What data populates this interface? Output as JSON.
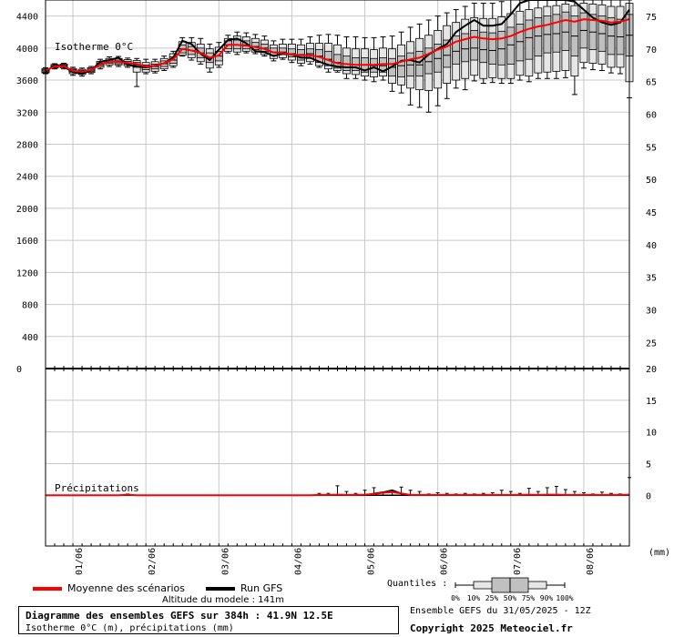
{
  "chart_data": {
    "type": "boxplot",
    "upper_panel": {
      "annotation": "Isotherme 0°C",
      "y_left_ticks": [
        400,
        800,
        1200,
        1600,
        2000,
        2400,
        2800,
        3200,
        3600,
        4000,
        4400
      ],
      "y_left_range": [
        0,
        4600
      ],
      "y_right_ticks": [
        25,
        30,
        35,
        40,
        45,
        50,
        55,
        60,
        65,
        70,
        75
      ],
      "y_right_range": [
        21,
        77.5
      ],
      "x_axis_range_hours": [
        0,
        384
      ],
      "ensemble_boxes": {
        "forecast_hour": [
          0,
          6,
          12,
          18,
          24,
          30,
          36,
          42,
          48,
          54,
          60,
          66,
          72,
          78,
          84,
          90,
          96,
          102,
          108,
          114,
          120,
          126,
          132,
          138,
          144,
          150,
          156,
          162,
          168,
          174,
          180,
          186,
          192,
          198,
          204,
          210,
          216,
          222,
          228,
          234,
          240,
          246,
          252,
          258,
          264,
          270,
          276,
          282,
          288,
          294,
          300,
          306,
          312,
          318,
          324,
          330,
          336,
          342,
          348,
          354,
          360,
          366,
          372,
          378,
          384
        ],
        "p0": [
          3680,
          3740,
          3740,
          3660,
          3650,
          3680,
          3740,
          3770,
          3770,
          3760,
          3520,
          3680,
          3690,
          3720,
          3760,
          3900,
          3850,
          3800,
          3700,
          3760,
          3940,
          3920,
          3940,
          3930,
          3900,
          3840,
          3860,
          3820,
          3780,
          3800,
          3760,
          3700,
          3700,
          3620,
          3620,
          3600,
          3580,
          3600,
          3460,
          3440,
          3290,
          3260,
          3200,
          3280,
          3370,
          3500,
          3480,
          3590,
          3560,
          3570,
          3560,
          3560,
          3600,
          3580,
          3620,
          3620,
          3620,
          3630,
          3420,
          3750,
          3730,
          3720,
          3690,
          3680,
          3380
        ],
        "p10": [
          3690,
          3750,
          3755,
          3680,
          3670,
          3695,
          3760,
          3790,
          3790,
          3780,
          3700,
          3700,
          3710,
          3740,
          3780,
          3910,
          3880,
          3830,
          3750,
          3790,
          3960,
          3950,
          3960,
          3950,
          3920,
          3870,
          3880,
          3850,
          3810,
          3830,
          3780,
          3740,
          3720,
          3680,
          3670,
          3650,
          3640,
          3650,
          3560,
          3540,
          3500,
          3480,
          3470,
          3500,
          3560,
          3600,
          3620,
          3660,
          3620,
          3630,
          3620,
          3620,
          3660,
          3650,
          3690,
          3700,
          3710,
          3720,
          3650,
          3820,
          3810,
          3800,
          3760,
          3760,
          3580
        ],
        "p25": [
          3700,
          3760,
          3765,
          3700,
          3690,
          3710,
          3780,
          3810,
          3805,
          3800,
          3760,
          3730,
          3740,
          3770,
          3810,
          3940,
          3920,
          3880,
          3820,
          3840,
          3990,
          3990,
          3990,
          3980,
          3960,
          3910,
          3920,
          3890,
          3850,
          3870,
          3820,
          3780,
          3750,
          3720,
          3720,
          3700,
          3700,
          3700,
          3650,
          3640,
          3650,
          3650,
          3680,
          3700,
          3760,
          3800,
          3830,
          3850,
          3820,
          3800,
          3790,
          3800,
          3840,
          3860,
          3900,
          3940,
          3950,
          3970,
          3900,
          4000,
          3980,
          3960,
          3920,
          3920,
          3900
        ],
        "p50": [
          3715,
          3770,
          3775,
          3715,
          3705,
          3725,
          3795,
          3830,
          3825,
          3815,
          3790,
          3760,
          3770,
          3805,
          3850,
          3990,
          3970,
          3940,
          3880,
          3900,
          4040,
          4040,
          4040,
          4020,
          4000,
          3950,
          3950,
          3930,
          3920,
          3930,
          3900,
          3860,
          3820,
          3800,
          3790,
          3790,
          3780,
          3780,
          3760,
          3780,
          3790,
          3790,
          3830,
          3870,
          3910,
          3960,
          3990,
          4000,
          3980,
          3970,
          3990,
          4040,
          4080,
          4130,
          4150,
          4170,
          4180,
          4200,
          4150,
          4220,
          4200,
          4180,
          4150,
          4140,
          4160
        ],
        "p75": [
          3730,
          3780,
          3790,
          3730,
          3720,
          3740,
          3815,
          3850,
          3850,
          3835,
          3820,
          3790,
          3800,
          3840,
          3890,
          4040,
          4020,
          4000,
          3940,
          3960,
          4090,
          4100,
          4090,
          4070,
          4050,
          4000,
          4000,
          3990,
          3980,
          3990,
          3980,
          3960,
          3920,
          3900,
          3880,
          3880,
          3870,
          3880,
          3870,
          3900,
          3940,
          3960,
          4000,
          4050,
          4100,
          4150,
          4180,
          4220,
          4200,
          4190,
          4210,
          4260,
          4300,
          4350,
          4380,
          4400,
          4420,
          4450,
          4400,
          4440,
          4420,
          4400,
          4380,
          4360,
          4420
        ],
        "p90": [
          3745,
          3795,
          3800,
          3745,
          3735,
          3755,
          3835,
          3870,
          3870,
          3855,
          3845,
          3820,
          3830,
          3870,
          3930,
          4080,
          4070,
          4050,
          3990,
          4010,
          4120,
          4150,
          4140,
          4120,
          4100,
          4040,
          4050,
          4050,
          4040,
          4060,
          4060,
          4060,
          4040,
          4000,
          3990,
          3990,
          3980,
          4000,
          3990,
          4040,
          4080,
          4120,
          4160,
          4220,
          4280,
          4320,
          4360,
          4380,
          4370,
          4370,
          4390,
          4430,
          4460,
          4480,
          4500,
          4520,
          4530,
          4550,
          4530,
          4560,
          4550,
          4540,
          4520,
          4520,
          4560
        ],
        "p100": [
          3755,
          3805,
          3810,
          3760,
          3750,
          3770,
          3860,
          3890,
          3895,
          3875,
          3870,
          3860,
          3860,
          3900,
          3960,
          4130,
          4130,
          4120,
          4050,
          4070,
          4160,
          4200,
          4190,
          4170,
          4150,
          4090,
          4110,
          4110,
          4110,
          4140,
          4160,
          4170,
          4160,
          4140,
          4140,
          4130,
          4130,
          4140,
          4150,
          4200,
          4260,
          4300,
          4350,
          4400,
          4440,
          4480,
          4520,
          4560,
          4560,
          4560,
          4580,
          4600,
          4600,
          4600,
          4600,
          4600,
          4600,
          4600,
          4600,
          4600,
          4600,
          4600,
          4600,
          4600,
          4600
        ],
        "mean": [
          3720,
          3770,
          3775,
          3715,
          3705,
          3725,
          3795,
          3830,
          3830,
          3815,
          3800,
          3770,
          3780,
          3810,
          3860,
          3990,
          3970,
          3940,
          3880,
          3910,
          4040,
          4040,
          4030,
          4010,
          3990,
          3945,
          3940,
          3920,
          3910,
          3910,
          3890,
          3850,
          3810,
          3800,
          3790,
          3790,
          3790,
          3800,
          3800,
          3830,
          3860,
          3880,
          3930,
          3980,
          4020,
          4080,
          4110,
          4140,
          4120,
          4110,
          4120,
          4150,
          4200,
          4240,
          4270,
          4290,
          4320,
          4350,
          4330,
          4360,
          4350,
          4340,
          4320,
          4330,
          4360
        ]
      },
      "run_gfs": [
        3700,
        3790,
        3770,
        3700,
        3680,
        3720,
        3830,
        3850,
        3880,
        3790,
        3770,
        3760,
        3780,
        3810,
        3880,
        4090,
        4050,
        3930,
        3850,
        3980,
        4100,
        4120,
        4060,
        3960,
        3950,
        3900,
        3930,
        3920,
        3880,
        3880,
        3830,
        3790,
        3770,
        3760,
        3760,
        3720,
        3760,
        3710,
        3770,
        3840,
        3850,
        3820,
        3920,
        3990,
        4050,
        4200,
        4280,
        4350,
        4280,
        4280,
        4300,
        4420,
        4560,
        4600,
        4600,
        4600,
        4600,
        4600,
        4580,
        4480,
        4380,
        4320,
        4290,
        4320,
        4480
      ]
    },
    "lower_panel": {
      "annotation": "Précipitations",
      "y_right_ticks": [
        0,
        5,
        10,
        15,
        20
      ],
      "y_right_range": [
        -8,
        20
      ],
      "unit_label": "(mm)",
      "y_left_label": "0",
      "precip_max": [
        0,
        0,
        0,
        0,
        0,
        0,
        0,
        0,
        0,
        0.2,
        0,
        0,
        0,
        0,
        0,
        0,
        0,
        0,
        0,
        0,
        0,
        0,
        0,
        0,
        0,
        0,
        0,
        0,
        0,
        0,
        0.3,
        0.3,
        1.5,
        0.6,
        0.3,
        0.8,
        1.2,
        0.4,
        0.8,
        1.3,
        0.8,
        0.6,
        0.2,
        0.4,
        0.3,
        0.2,
        0.3,
        0.2,
        0.3,
        0.4,
        0.8,
        0.6,
        0.3,
        1.1,
        0.6,
        1.2,
        1.4,
        0.9,
        0.6,
        0.4,
        0.2,
        0.5,
        0.3,
        0.2,
        2.8
      ],
      "precip_mean": [
        0,
        0,
        0,
        0,
        0,
        0,
        0,
        0,
        0,
        0.1,
        0,
        0,
        0,
        0,
        0,
        0,
        0,
        0,
        0,
        0,
        0,
        0,
        0,
        0,
        0,
        0,
        0,
        0,
        0,
        0,
        0.05,
        0.05,
        0.1,
        0.05,
        0.05,
        0.1,
        0.2,
        0.4,
        0.5,
        0.3,
        0.05,
        0.05,
        0.05,
        0.05,
        0.05,
        0.05,
        0.05,
        0.05,
        0.05,
        0.05,
        0.05,
        0.05,
        0.05,
        0.1,
        0.05,
        0.1,
        0.1,
        0.05,
        0.05,
        0.05,
        0.05,
        0.05,
        0.05,
        0.05,
        0.1
      ],
      "run_gfs": [
        0,
        0,
        0,
        0,
        0,
        0,
        0,
        0,
        0,
        0,
        0,
        0,
        0,
        0,
        0,
        0,
        0,
        0,
        0,
        0,
        0,
        0,
        0,
        0,
        0,
        0,
        0,
        0,
        0,
        0,
        0,
        0,
        0,
        0,
        0,
        0,
        0.3,
        0.5,
        0.8,
        0.3,
        0,
        0,
        0,
        0,
        0,
        0,
        0,
        0,
        0,
        0,
        0,
        0,
        0,
        0,
        0,
        0,
        0,
        0,
        0,
        0,
        0,
        0,
        0,
        0,
        0
      ]
    },
    "x_ticks": [
      {
        "hour": 18,
        "label": "01/06"
      },
      {
        "hour": 66,
        "label": "02/06"
      },
      {
        "hour": 114,
        "label": "03/06"
      },
      {
        "hour": 162,
        "label": "04/06"
      },
      {
        "hour": 210,
        "label": "05/06"
      },
      {
        "hour": 258,
        "label": "06/06"
      },
      {
        "hour": 306,
        "label": "07/06"
      },
      {
        "hour": 354,
        "label": "08/06"
      }
    ],
    "colors": {
      "mean": "#ff0000",
      "run": "#000000",
      "box": "#c0c0c0",
      "grid": "#c8c8c8"
    }
  },
  "legend": {
    "mean_label": "Moyenne des scénarios",
    "run_label": "Run GFS",
    "quantiles_label": "Quantiles :",
    "quantile_ticks": [
      "0%",
      "10%",
      "25%",
      "50%",
      "75%",
      "90%",
      "100%"
    ]
  },
  "footer": {
    "altitude": "Altitude du modele : 141m",
    "title": "Diagramme des ensembles GEFS sur 384h : 41.9N 12.5E",
    "subtitle": "Isotherme 0°C (m), précipitations (mm)",
    "run_info": "Ensemble GEFS du 31/05/2025 - 12Z",
    "copyright": "Copyright 2025 Meteociel.fr"
  }
}
